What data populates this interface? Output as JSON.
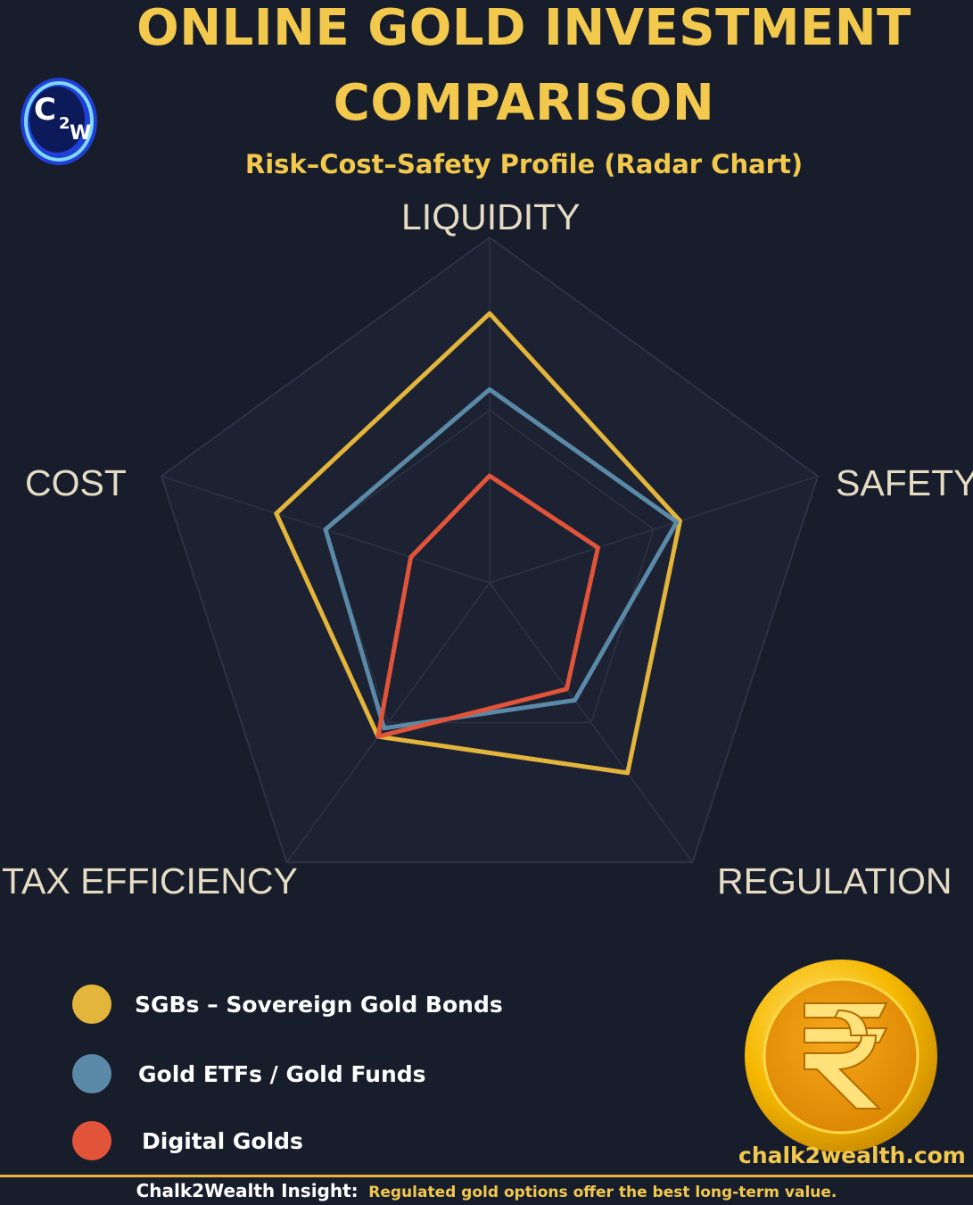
{
  "header": {
    "title_line1": "ONLINE GOLD INVESTMENT",
    "title_line2": "COMPARISON",
    "subtitle": "Risk–Cost–Safety Profile (Radar Chart)",
    "logo_text": "C2W"
  },
  "chart_data": {
    "type": "radar",
    "axes": [
      "LIQUIDITY",
      "SAFETY",
      "REGULATION",
      "TAX EFFICIENCY",
      "COST"
    ],
    "range": [
      0,
      10
    ],
    "grid": true,
    "series": [
      {
        "name": "SGBs – Sovereign Gold Bonds",
        "color": "#e3b53a",
        "values": [
          7.8,
          5.8,
          6.8,
          5.5,
          6.5
        ]
      },
      {
        "name": "Gold ETFs / Gold Funds",
        "color": "#5a8aa7",
        "values": [
          5.6,
          5.7,
          4.2,
          5.2,
          5.0
        ]
      },
      {
        "name": "Digital Golds",
        "color": "#e2543a",
        "values": [
          3.1,
          3.3,
          3.8,
          5.5,
          2.4
        ]
      }
    ]
  },
  "branding": {
    "website": "chalk2wealth.com",
    "coin_symbol": "rupee-icon"
  },
  "footer": {
    "label": "Chalk2Wealth Insight:",
    "text": "Regulated gold options offer the best long-term value."
  },
  "colors": {
    "accent": "#f2c94c",
    "background": "#181d2c",
    "grid": "#2c3345"
  }
}
